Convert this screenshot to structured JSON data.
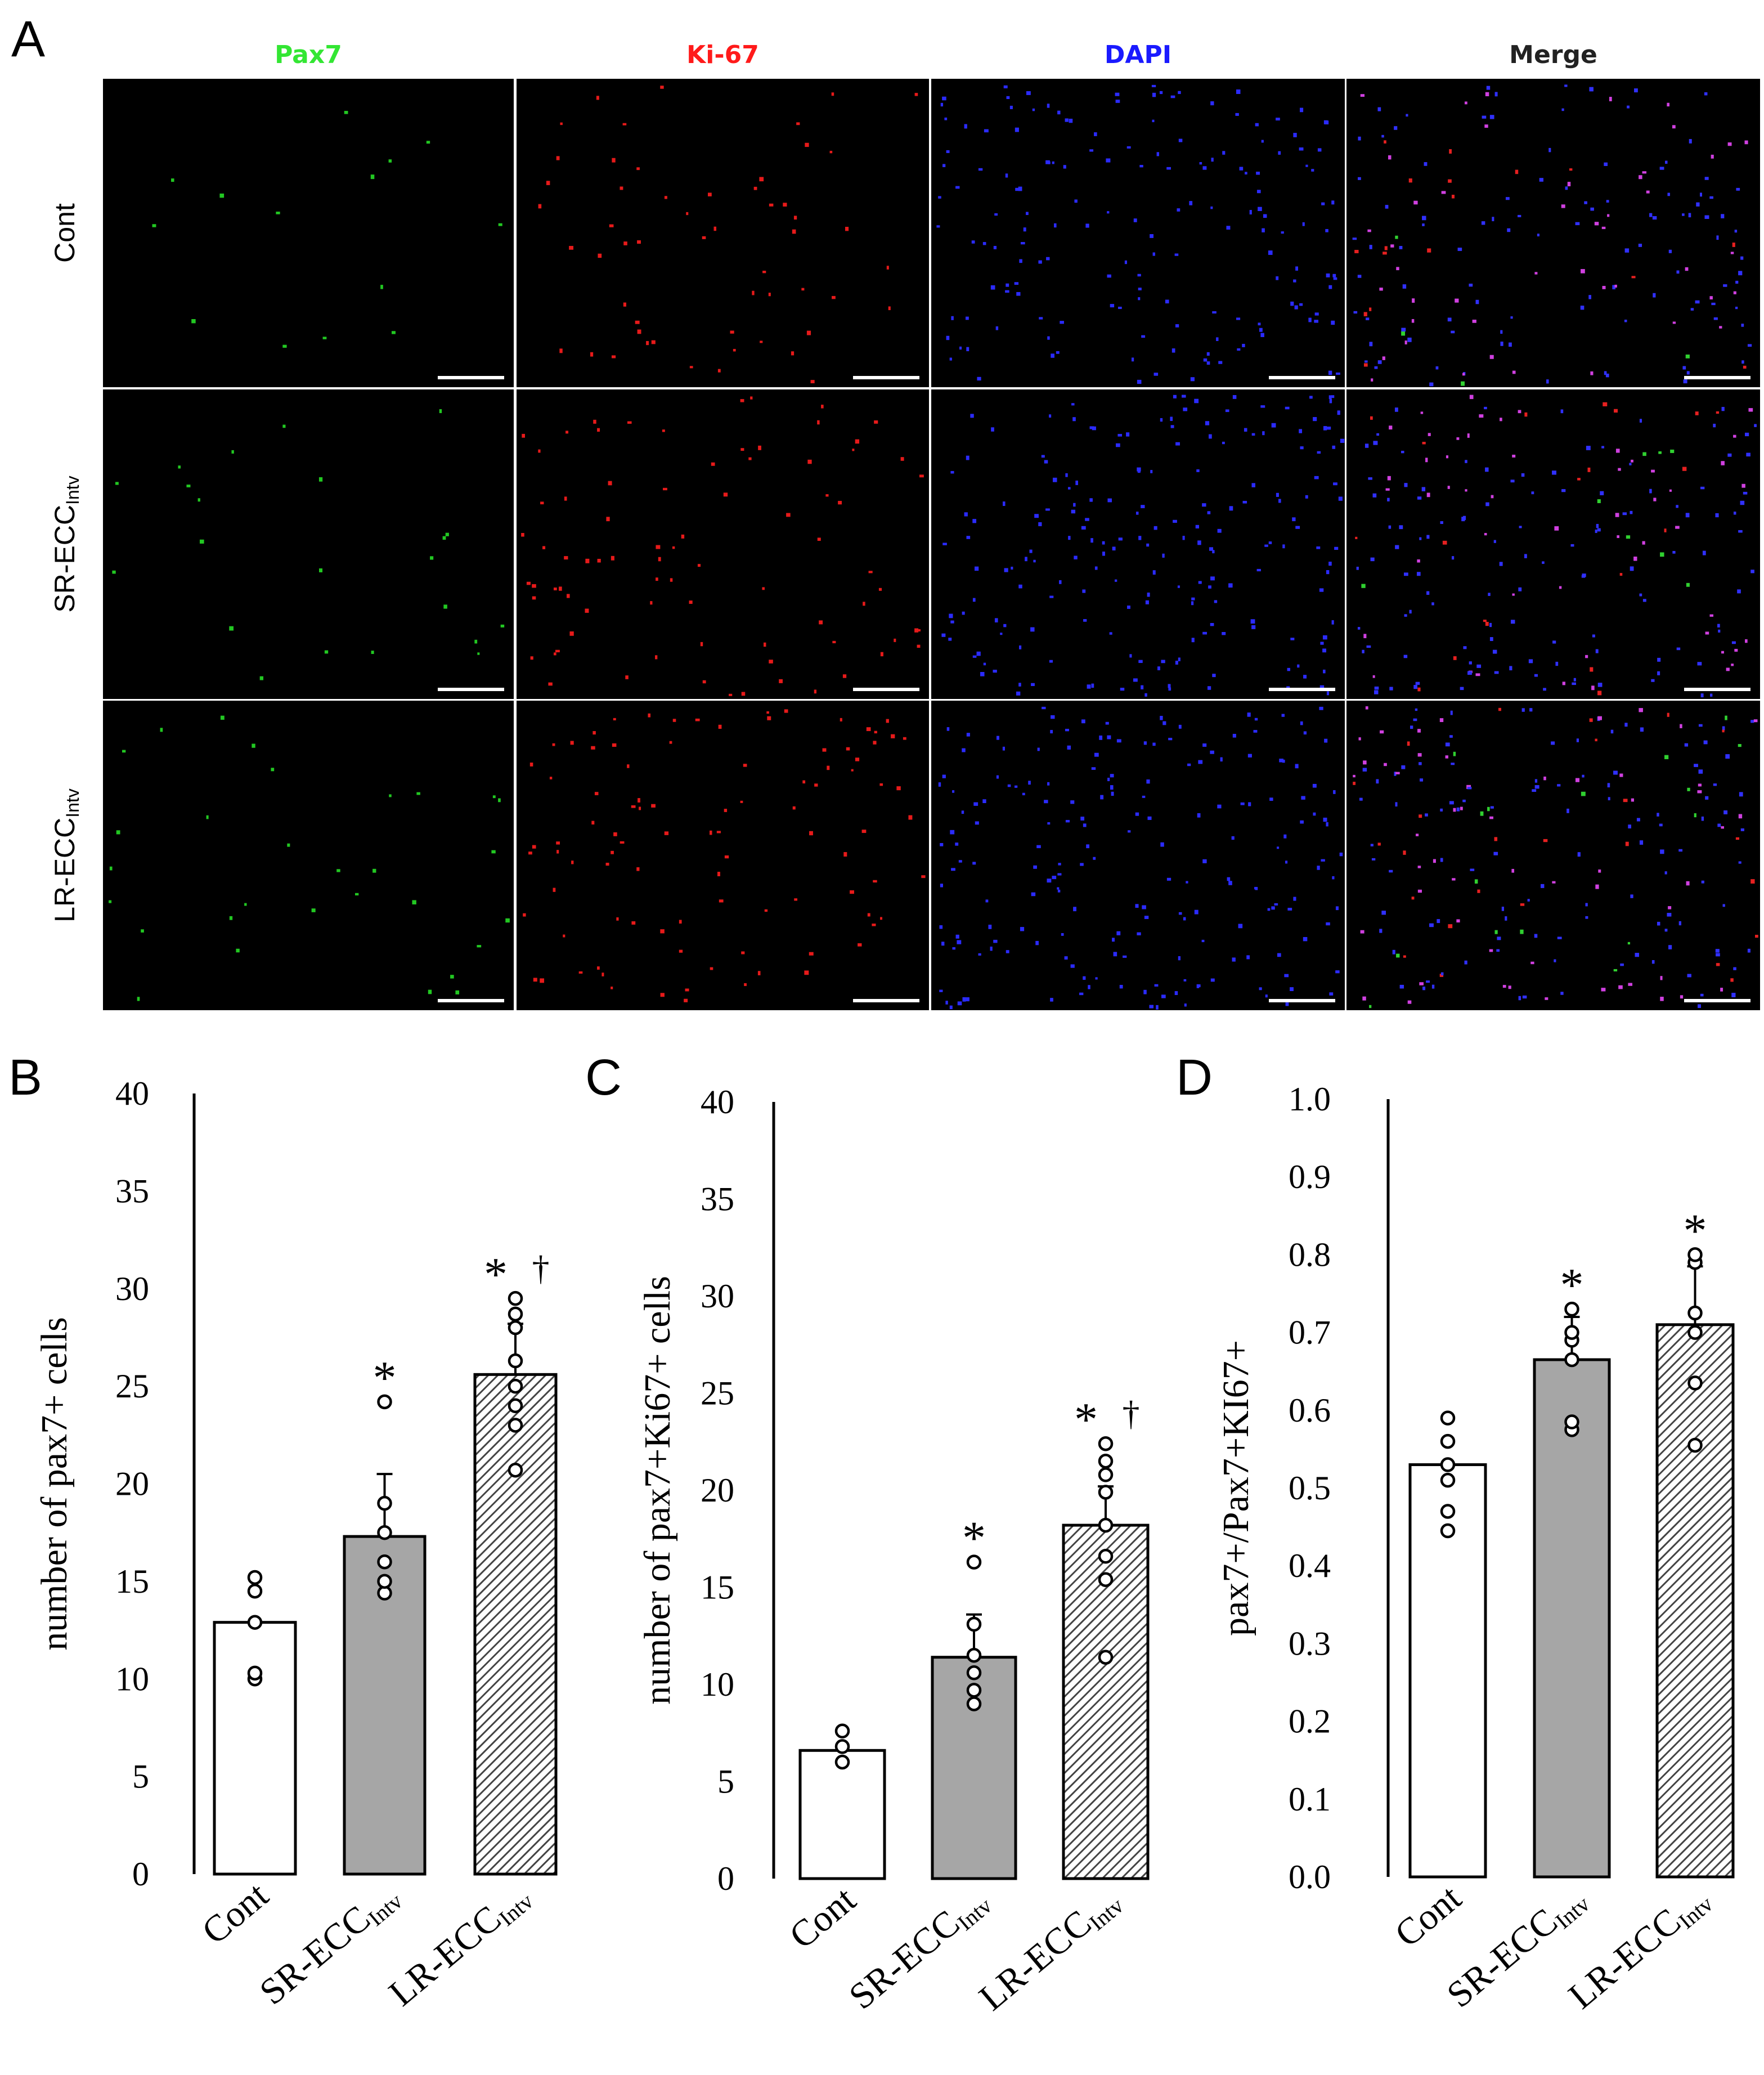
{
  "panel_a": {
    "letter": "A",
    "columns": [
      {
        "label": "Pax7",
        "color": "#33e633"
      },
      {
        "label": "Ki-67",
        "color": "#ff1a1a"
      },
      {
        "label": "DAPI",
        "color": "#1a1aff"
      },
      {
        "label": "Merge",
        "color": "#222222"
      }
    ],
    "rows": [
      {
        "label": "Cont",
        "sub": ""
      },
      {
        "label": "SR-ECC",
        "sub": "Intv"
      },
      {
        "label": "LR-ECC",
        "sub": "Intv"
      }
    ]
  },
  "chart_data": [
    {
      "type": "bar",
      "letter": "B",
      "ylabel": "number of pax7+ cells",
      "ylim": [
        0,
        40
      ],
      "yticks": [
        "0",
        "5",
        "10",
        "15",
        "20",
        "25",
        "30",
        "35",
        "40"
      ],
      "categories": [
        {
          "main": "Cont",
          "sub": ""
        },
        {
          "main": "SR-ECC",
          "sub": "Intv"
        },
        {
          "main": "LR-ECC",
          "sub": "Intv"
        }
      ],
      "values": [
        12.9,
        17.3,
        25.6
      ],
      "errors": [
        0,
        3.2,
        2.6
      ],
      "points": [
        [
          10.0,
          10.3,
          12.9,
          14.5,
          15.2
        ],
        [
          14.4,
          15.0,
          16.0,
          17.5,
          19.0,
          24.2
        ],
        [
          20.7,
          23.0,
          24.0,
          25.0,
          26.3,
          28.0,
          28.7,
          29.5
        ]
      ],
      "significance": [
        "",
        "*",
        "* †"
      ]
    },
    {
      "type": "bar",
      "letter": "C",
      "ylabel": "number of pax7+Ki67+ cells",
      "ylim": [
        0,
        40
      ],
      "yticks": [
        "0",
        "5",
        "10",
        "15",
        "20",
        "25",
        "30",
        "35",
        "40"
      ],
      "categories": [
        {
          "main": "Cont",
          "sub": ""
        },
        {
          "main": "SR-ECC",
          "sub": "Intv"
        },
        {
          "main": "LR-ECC",
          "sub": "Intv"
        }
      ],
      "values": [
        6.6,
        11.4,
        18.2
      ],
      "errors": [
        0,
        2.2,
        2.0
      ],
      "points": [
        [
          6.0,
          6.8,
          7.6
        ],
        [
          9.0,
          9.7,
          10.6,
          11.5,
          13.1,
          16.3
        ],
        [
          11.4,
          15.4,
          16.6,
          18.2,
          19.9,
          20.8,
          21.5,
          22.4
        ]
      ],
      "significance": [
        "",
        "*",
        "* †"
      ]
    },
    {
      "type": "bar",
      "letter": "D",
      "ylabel": "pax7+/Pax7+KI67+",
      "ylim": [
        0,
        1.0
      ],
      "yticks": [
        "0.0",
        "0.1",
        "0.2",
        "0.3",
        "0.4",
        "0.5",
        "0.6",
        "0.7",
        "0.8",
        "0.9",
        "1.0"
      ],
      "categories": [
        {
          "main": "Cont",
          "sub": ""
        },
        {
          "main": "SR-ECC",
          "sub": "Intv"
        },
        {
          "main": "LR-ECC",
          "sub": "Intv"
        }
      ],
      "values": [
        0.53,
        0.665,
        0.71
      ],
      "errors": [
        0,
        0.055,
        0.075
      ],
      "points": [
        [
          0.445,
          0.47,
          0.51,
          0.53,
          0.56,
          0.59
        ],
        [
          0.575,
          0.585,
          0.665,
          0.69,
          0.7,
          0.73
        ],
        [
          0.555,
          0.635,
          0.7,
          0.725,
          0.79,
          0.8
        ]
      ],
      "significance": [
        "",
        "*",
        "*"
      ]
    }
  ]
}
